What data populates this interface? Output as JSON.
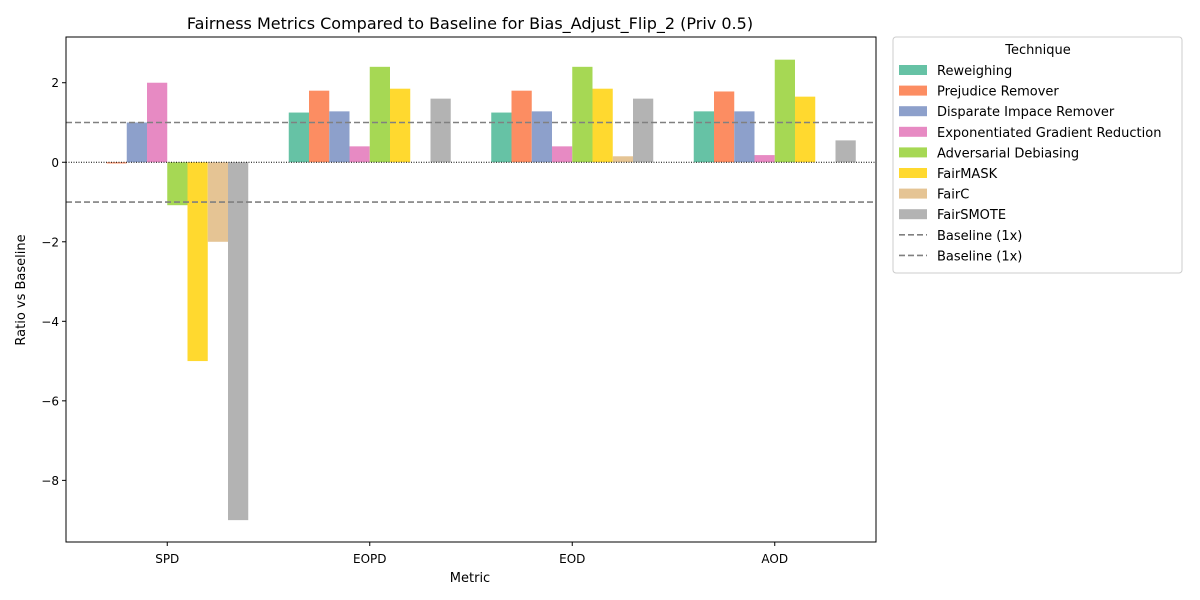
{
  "chart_data": {
    "type": "bar",
    "title": "Fairness Metrics Compared to Baseline for Bias_Adjust_Flip_2 (Priv 0.5)",
    "xlabel": "Metric",
    "ylabel": "Ratio vs Baseline",
    "categories": [
      "SPD",
      "EOPD",
      "EOD",
      "AOD"
    ],
    "ylim": [
      -9.55,
      3.15
    ],
    "yticks": [
      -8,
      -6,
      -4,
      -2,
      0,
      2
    ],
    "ytick_labels": [
      "−8",
      "−6",
      "−4",
      "−2",
      "0",
      "2"
    ],
    "reference_lines": [
      {
        "y": 1,
        "style": "dashed",
        "color": "#808080"
      },
      {
        "y": -1,
        "style": "dashed",
        "color": "#808080"
      },
      {
        "y": 0,
        "style": "dotted",
        "color": "#000000"
      }
    ],
    "legend": {
      "title": "Technique",
      "placement": "outside-right",
      "baseline_entries": [
        "Baseline (1x)",
        "Baseline (1x)"
      ]
    },
    "series": [
      {
        "name": "Reweighing",
        "color": "#66c2a5",
        "values": [
          0,
          1.25,
          1.25,
          1.28
        ]
      },
      {
        "name": "Prejudice Remover",
        "color": "#fc8d62",
        "values": [
          -0.03,
          1.8,
          1.8,
          1.78
        ]
      },
      {
        "name": "Disparate Impace Remover",
        "color": "#8da0cb",
        "values": [
          1.0,
          1.28,
          1.28,
          1.28
        ]
      },
      {
        "name": "Exponentiated Gradient Reduction",
        "color": "#e78ac3",
        "values": [
          2.0,
          0.4,
          0.4,
          0.18
        ]
      },
      {
        "name": "Adversarial Debiasing",
        "color": "#a6d854",
        "values": [
          -1.08,
          2.4,
          2.4,
          2.58
        ]
      },
      {
        "name": "FairMASK",
        "color": "#ffd92f",
        "values": [
          -5.0,
          1.85,
          1.85,
          1.65
        ]
      },
      {
        "name": "FairC",
        "color": "#e5c494",
        "values": [
          -2.0,
          0,
          0.15,
          0
        ]
      },
      {
        "name": "FairSMOTE",
        "color": "#b3b3b3",
        "values": [
          -9.0,
          1.6,
          1.6,
          0.55
        ]
      }
    ]
  }
}
